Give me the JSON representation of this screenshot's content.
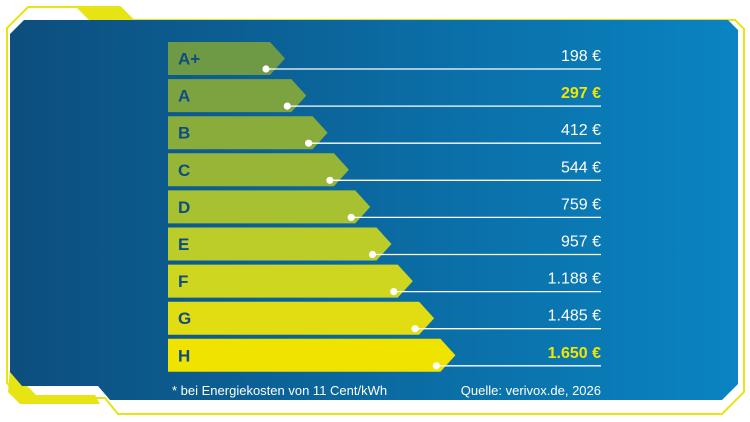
{
  "chart_data": {
    "type": "bar",
    "orientation": "horizontal",
    "categories": [
      "A+",
      "A",
      "B",
      "C",
      "D",
      "E",
      "F",
      "G",
      "H"
    ],
    "values": [
      198,
      297,
      412,
      544,
      759,
      957,
      1188,
      1485,
      1650
    ],
    "value_labels": [
      "198 €",
      "297 €",
      "412 €",
      "544 €",
      "759 €",
      "957 €",
      "1.188 €",
      "1.485 €",
      "1.650 €"
    ],
    "highlighted_categories": [
      "A",
      "H"
    ],
    "bar_colors": [
      "#6f9a45",
      "#7da340",
      "#8aac3b",
      "#98b636",
      "#a8c131",
      "#bccd2a",
      "#cfd61f",
      "#e2dd12",
      "#f1e300"
    ],
    "highlight_color": "#f5e400",
    "footnote": "* bei Energiekosten von 11 Cent/kWh",
    "source": "Quelle: verivox.de, 2026"
  },
  "colors": {
    "background": "#0a5b8f",
    "accent": "#e6e412"
  }
}
